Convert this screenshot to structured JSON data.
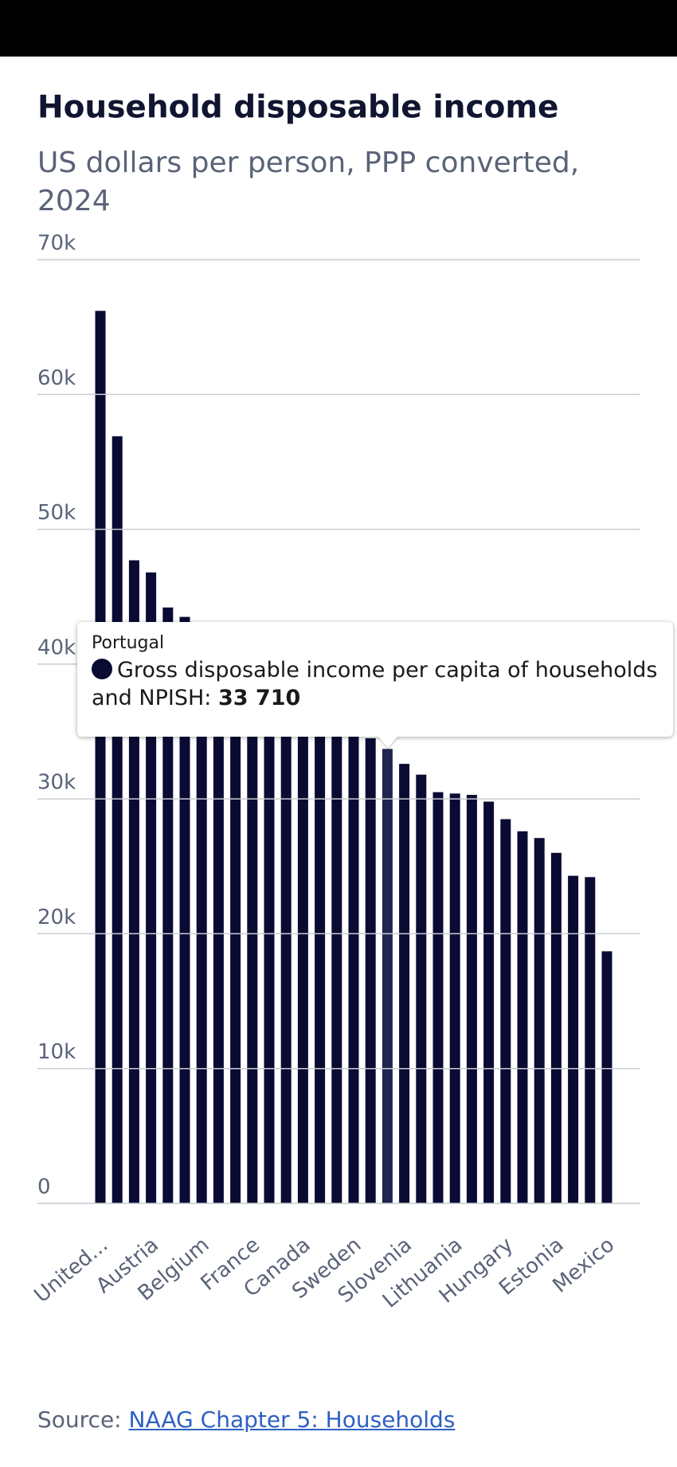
{
  "chart_data": {
    "type": "bar",
    "title": "Household disposable income",
    "subtitle": "US dollars per person, PPP converted, 2024",
    "categories": [
      "United...",
      null,
      null,
      "Austria",
      null,
      null,
      "Belgium",
      null,
      null,
      "France",
      null,
      null,
      "Canada",
      null,
      null,
      "Sweden",
      null,
      null,
      "Slovenia",
      null,
      null,
      "Lithuania",
      null,
      null,
      "Hungary",
      null,
      null,
      "Estonia",
      null,
      null,
      "Mexico"
    ],
    "series": [
      {
        "name": "Gross disposable income per capita of households and NPISH",
        "color": "#0a0b33",
        "values": [
          66200,
          56900,
          47700,
          46800,
          44200,
          43500,
          42500,
          41500,
          40800,
          40000,
          39200,
          38500,
          37800,
          37000,
          36300,
          35500,
          34500,
          33710,
          32600,
          31800,
          30500,
          30400,
          30300,
          29800,
          28500,
          27600,
          27100,
          26000,
          24300,
          24200,
          18700
        ]
      }
    ],
    "ylim": [
      0,
      70000
    ],
    "yticks": [
      0,
      {
        "value": 10000,
        "label": "10k"
      },
      {
        "value": 20000,
        "label": "20k"
      },
      {
        "value": 30000,
        "label": "30k"
      },
      {
        "value": 40000,
        "label": "40k"
      },
      {
        "value": 50000,
        "label": "50k"
      },
      {
        "value": 60000,
        "label": "60k"
      },
      {
        "value": 70000,
        "label": "70k"
      }
    ],
    "grid": true,
    "highlighted": 17,
    "highlight_color": "#1f2450",
    "tooltip": {
      "category": "Portugal",
      "value_label": "33 710"
    },
    "source": {
      "label": "Source:",
      "link": "NAAG Chapter 5: Households"
    }
  }
}
